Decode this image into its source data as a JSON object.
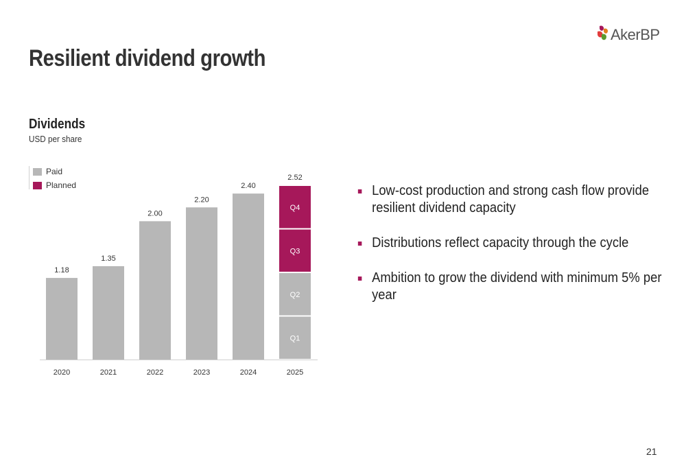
{
  "brand": {
    "logo_text": "AkerBP",
    "colors": {
      "paid": "#b7b7b7",
      "planned": "#a6185a",
      "text": "#333333"
    }
  },
  "slide": {
    "title": "Resilient dividend growth",
    "page_number": "21"
  },
  "chart_data": {
    "type": "bar",
    "title": "Dividends",
    "subtitle": "USD per share",
    "legend": [
      "Paid",
      "Planned"
    ],
    "legend_position": "top-left",
    "categories": [
      "2020",
      "2021",
      "2022",
      "2023",
      "2024",
      "2025"
    ],
    "totals": [
      "1.18",
      "1.35",
      "2.00",
      "2.20",
      "2.40",
      "2.52"
    ],
    "values": [
      1.18,
      1.35,
      2.0,
      2.2,
      2.4,
      2.52
    ],
    "stacked_2025": [
      {
        "label": "Q1",
        "value": 0.63,
        "status": "Paid"
      },
      {
        "label": "Q2",
        "value": 0.63,
        "status": "Paid"
      },
      {
        "label": "Q3",
        "value": 0.63,
        "status": "Planned"
      },
      {
        "label": "Q4",
        "value": 0.63,
        "status": "Planned"
      }
    ],
    "ylim": [
      0,
      2.52
    ],
    "grid": false
  },
  "bullets": [
    "Low-cost production and strong cash flow provide resilient dividend capacity",
    "Distributions reflect capacity through the cycle",
    "Ambition to grow the dividend with minimum 5% per year"
  ]
}
